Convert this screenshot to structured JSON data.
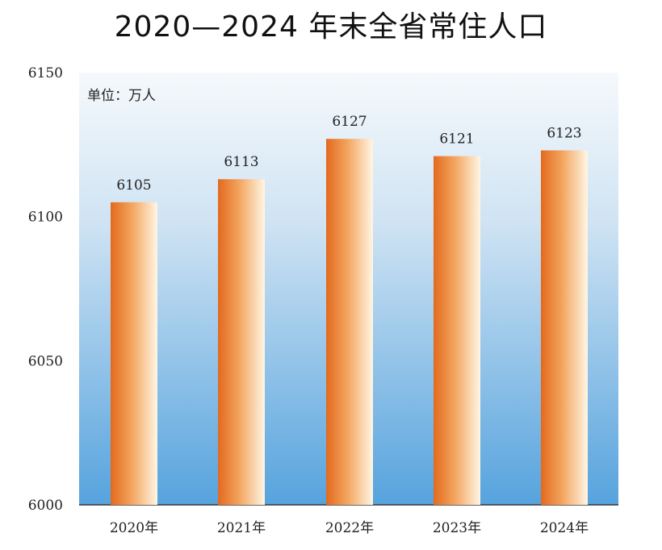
{
  "chart_data": {
    "type": "bar",
    "title": "2020—2024 年末全省常住人口",
    "unit_label": "单位：万人",
    "categories": [
      "2020年",
      "2021年",
      "2022年",
      "2023年",
      "2024年"
    ],
    "values": [
      6105,
      6113,
      6127,
      6121,
      6123
    ],
    "value_labels": [
      "6105",
      "6113",
      "6127",
      "6121",
      "6123"
    ],
    "ylim": [
      6000,
      6150
    ],
    "yticks": [
      6000,
      6050,
      6100,
      6150
    ],
    "ytick_labels": [
      "6000",
      "6050",
      "6100",
      "6150"
    ],
    "grid": false,
    "legend": "none"
  },
  "colors": {
    "bar_dark": "#e8742a",
    "bar_light": "#fff3dc",
    "bg_top": "#f4f8fc",
    "bg_bottom": "#5aa5de"
  }
}
